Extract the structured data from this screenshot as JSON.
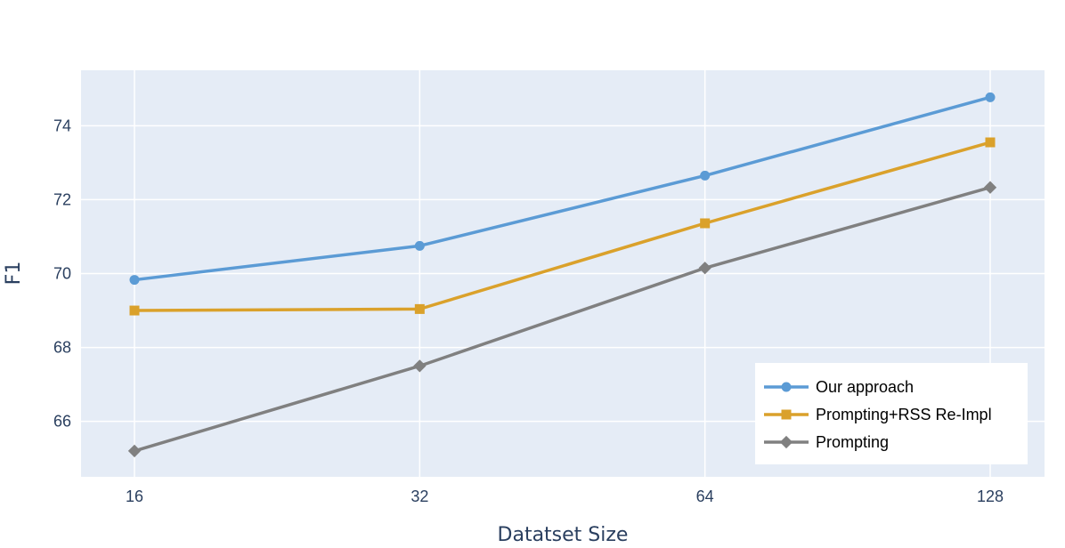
{
  "chart_data": {
    "type": "line",
    "title": "",
    "xlabel": "Datatset Size",
    "ylabel": "F1",
    "x": [
      16,
      32,
      64,
      128
    ],
    "x_ticks": [
      "16",
      "32",
      "64",
      "128"
    ],
    "x_scale": "log2",
    "ylim": [
      64.5,
      75.5
    ],
    "y_ticks": [
      66,
      68,
      70,
      72,
      74
    ],
    "grid": true,
    "legend_position": "bottom-right",
    "colors": {
      "plot_background": "#e5ecf6",
      "grid": "#ffffff",
      "text": "#2a3f5f"
    },
    "series": [
      {
        "name": "Our approach",
        "values": [
          69.83,
          70.75,
          72.65,
          74.77
        ],
        "color": "#5b9bd5",
        "marker": "circle"
      },
      {
        "name": "Prompting+RSS Re-Impl",
        "values": [
          69.0,
          69.04,
          71.36,
          73.55
        ],
        "color": "#daa12b",
        "marker": "square"
      },
      {
        "name": "Prompting",
        "values": [
          65.2,
          67.5,
          70.15,
          72.33
        ],
        "color": "#808080",
        "marker": "diamond"
      }
    ]
  }
}
